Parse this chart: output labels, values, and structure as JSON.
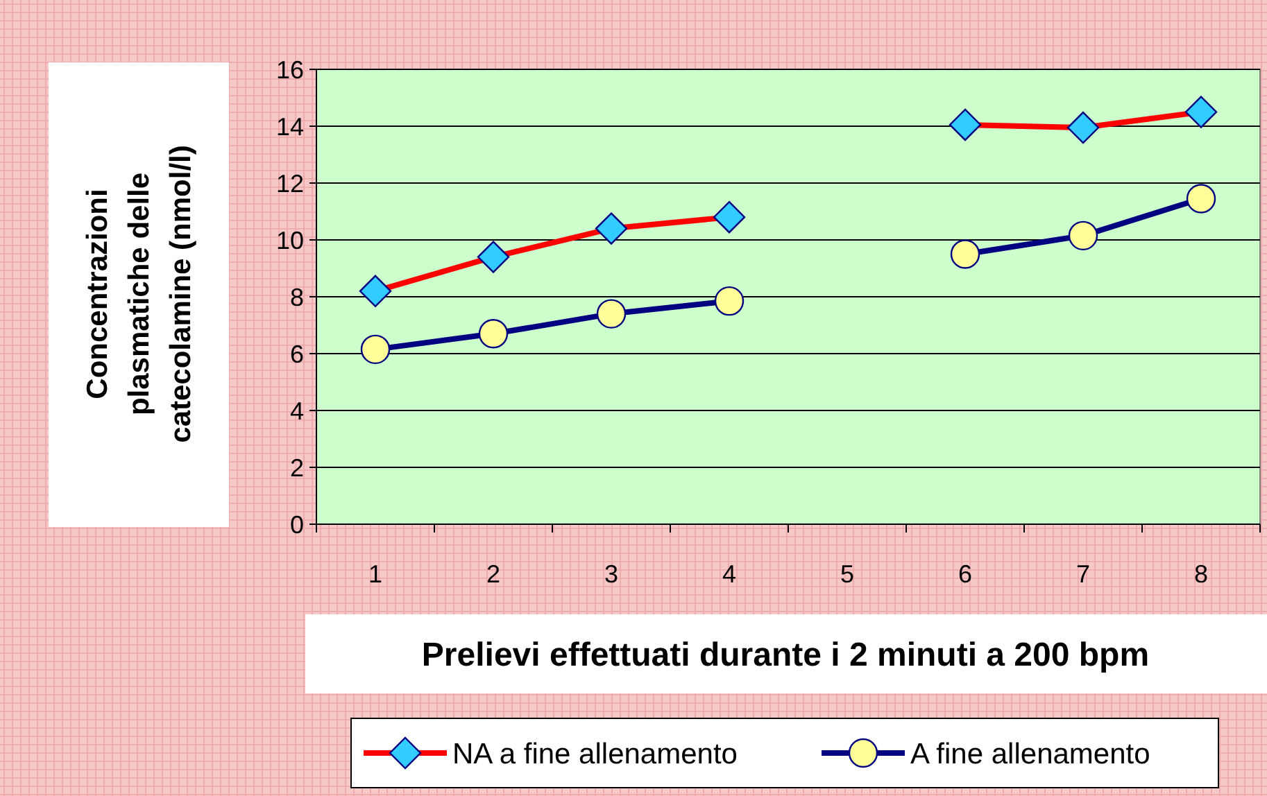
{
  "chart_data": {
    "type": "line",
    "xlabel": "Prelievi effettuati durante i 2 minuti a 200 bpm",
    "ylabel": "Concentrazioni plasmatiche delle catecolamine (nmol/l)",
    "categories": [
      "1",
      "2",
      "3",
      "4",
      "5",
      "6",
      "7",
      "8"
    ],
    "series": [
      {
        "name": "NA a fine allenamento",
        "color": "#ff0000",
        "marker": "diamond",
        "values": [
          8.2,
          9.4,
          10.4,
          10.8,
          null,
          14.05,
          13.95,
          14.5
        ]
      },
      {
        "name": "A fine allenamento",
        "color": "#000080",
        "marker": "circle",
        "values": [
          6.15,
          6.7,
          7.4,
          7.85,
          null,
          9.5,
          10.15,
          11.45
        ]
      }
    ],
    "ylim": [
      0,
      16
    ],
    "yticks": [
      0,
      2,
      4,
      6,
      8,
      10,
      12,
      14,
      16
    ],
    "grid": "y",
    "legend": "bottom",
    "line_style": "solid"
  }
}
